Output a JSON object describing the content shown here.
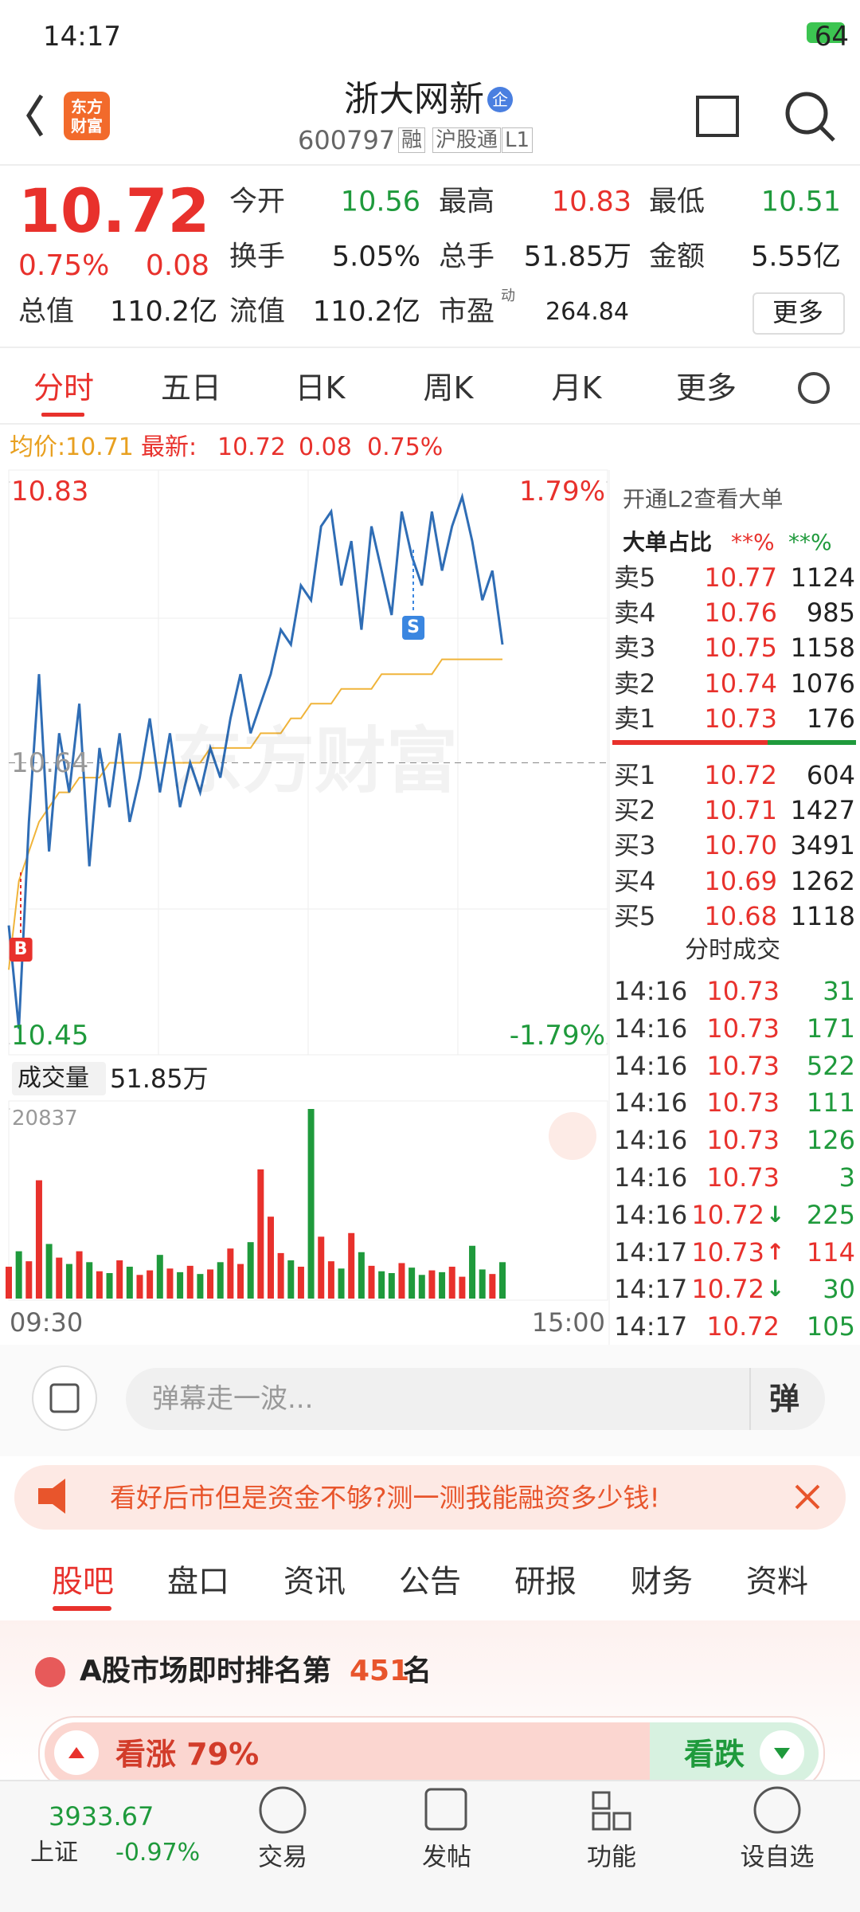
{
  "status": {
    "time": "14:17",
    "battery": "64"
  },
  "header": {
    "logo": [
      "东方",
      "财富"
    ],
    "title": "浙大网新",
    "badge": "企",
    "code": "600797",
    "tags": [
      "融",
      "沪股通",
      "L1"
    ]
  },
  "quote": {
    "price": "10.72",
    "change_pct": "0.75%",
    "change": "0.08",
    "stats": [
      [
        "今开",
        "10.56"
      ],
      [
        "最高",
        "10.83"
      ],
      [
        "最低",
        "10.51"
      ],
      [
        "换手",
        "5.05%"
      ],
      [
        "总手",
        "51.85万"
      ],
      [
        "金额",
        "5.55亿"
      ],
      [
        "总值",
        "110.2亿"
      ],
      [
        "流值",
        "110.2亿"
      ],
      [
        "市盈",
        "264.84"
      ]
    ],
    "pe_sup": "动",
    "more": "更多"
  },
  "tabs": [
    "分时",
    "五日",
    "日K",
    "周K",
    "月K",
    "更多"
  ],
  "info": {
    "avg_label": "均价:",
    "avg": "10.71",
    "last_label": "最新:",
    "last": "10.72",
    "change": "0.08",
    "pct": "0.75%"
  },
  "chart_data": [
    {
      "type": "line",
      "xticks": [
        "09:30",
        "15:00"
      ],
      "watermark": "东方财富",
      "annotations": [
        "B",
        "S"
      ],
      "ylim": [
        10.45,
        10.83
      ],
      "yticks": [
        10.83,
        10.64,
        10.45
      ],
      "y2lim": [
        -1.79,
        1.79
      ],
      "y2ticks": [
        {
          "value": 1.79,
          "label": "1.79%"
        },
        {
          "value": -1.79,
          "label": "-1.79%"
        }
      ],
      "series": [
        {
          "name": "price",
          "color": "#2f6db5",
          "values": [
            10.53,
            10.46,
            10.6,
            10.7,
            10.58,
            10.66,
            10.62,
            10.68,
            10.57,
            10.65,
            10.61,
            10.66,
            10.6,
            10.63,
            10.67,
            10.62,
            10.66,
            10.61,
            10.64,
            10.62,
            10.65,
            10.63,
            10.67,
            10.7,
            10.66,
            10.68,
            10.7,
            10.73,
            10.72,
            10.76,
            10.75,
            10.8,
            10.81,
            10.76,
            10.79,
            10.73,
            10.8,
            10.77,
            10.74,
            10.81,
            10.78,
            10.76,
            10.81,
            10.77,
            10.8,
            10.82,
            10.79,
            10.75,
            10.77,
            10.72
          ]
        },
        {
          "name": "avg",
          "color": "#f0b43a",
          "values": [
            10.5,
            10.56,
            10.58,
            10.6,
            10.61,
            10.62,
            10.62,
            10.63,
            10.63,
            10.63,
            10.64,
            10.64,
            10.64,
            10.64,
            10.64,
            10.64,
            10.64,
            10.64,
            10.64,
            10.64,
            10.65,
            10.65,
            10.65,
            10.65,
            10.65,
            10.66,
            10.66,
            10.66,
            10.67,
            10.67,
            10.68,
            10.68,
            10.68,
            10.69,
            10.69,
            10.69,
            10.69,
            10.7,
            10.7,
            10.7,
            10.7,
            10.7,
            10.7,
            10.71,
            10.71,
            10.71,
            10.71,
            10.71,
            10.71,
            10.71
          ]
        }
      ]
    },
    {
      "type": "bar",
      "title": "成交量",
      "subtitle": "51.85万",
      "up_color": "#e8312c",
      "down_color": "#1f9a3c",
      "ylim": [
        0,
        20837
      ],
      "yticks": [
        20837
      ],
      "values": [
        3500,
        5200,
        4100,
        13000,
        6000,
        4500,
        3800,
        5200,
        4000,
        3000,
        2800,
        4200,
        3500,
        2600,
        3100,
        4800,
        3300,
        2900,
        3600,
        2700,
        3200,
        4000,
        5500,
        3800,
        6200,
        14200,
        9000,
        5000,
        4200,
        3500,
        20837,
        6800,
        4100,
        3300,
        7200,
        5100,
        3600,
        3000,
        2800,
        3900,
        3400,
        2600,
        3100,
        2900,
        3500,
        2400,
        5800,
        3200,
        2700,
        4000
      ]
    }
  ],
  "order_book": {
    "promo": "开通L2查看大单",
    "ratio_label": "大单占比",
    "ratio_sell": "**%",
    "ratio_buy": "**%",
    "asks": [
      [
        "卖5",
        "10.77",
        "1124"
      ],
      [
        "卖4",
        "10.76",
        "985"
      ],
      [
        "卖3",
        "10.75",
        "1158"
      ],
      [
        "卖2",
        "10.74",
        "1076"
      ],
      [
        "卖1",
        "10.73",
        "176"
      ]
    ],
    "bids": [
      [
        "买1",
        "10.72",
        "604"
      ],
      [
        "买2",
        "10.71",
        "1427"
      ],
      [
        "买3",
        "10.70",
        "3491"
      ],
      [
        "买4",
        "10.69",
        "1262"
      ],
      [
        "买5",
        "10.68",
        "1118"
      ]
    ]
  },
  "trades": {
    "title": "分时成交",
    "rows": [
      {
        "time": "14:16",
        "price": "10.73",
        "volume": "31"
      },
      {
        "time": "14:16",
        "price": "10.73",
        "volume": "171"
      },
      {
        "time": "14:16",
        "price": "10.73",
        "volume": "522"
      },
      {
        "time": "14:16",
        "price": "10.73",
        "volume": "111"
      },
      {
        "time": "14:16",
        "price": "10.73",
        "volume": "126"
      },
      {
        "time": "14:16",
        "price": "10.73",
        "volume": "3"
      },
      {
        "time": "14:16",
        "price": "10.72",
        "volume": "225",
        "arrow": "↓"
      },
      {
        "time": "14:17",
        "price": "10.73",
        "volume": "114",
        "arrow": "↑"
      },
      {
        "time": "14:17",
        "price": "10.72",
        "volume": "30",
        "arrow": "↓"
      },
      {
        "time": "14:17",
        "price": "10.72",
        "volume": "105"
      }
    ]
  },
  "comment": {
    "placeholder": "弹幕走一波...",
    "button": "弹"
  },
  "banner": "看好后市但是资金不够?测一测我能融资多少钱!",
  "sections": [
    "股吧",
    "盘口",
    "资讯",
    "公告",
    "研报",
    "财务",
    "资料"
  ],
  "rank": {
    "text": "A股市场即时排名第",
    "rank": "451",
    "suffix": "名"
  },
  "vote": {
    "up": "看涨 79%",
    "down": "看跌"
  },
  "bottom_nav": {
    "index_value": "3933.67",
    "index_name": "上证",
    "index_change": "-0.97%",
    "items": [
      "交易",
      "发帖",
      "功能",
      "设自选"
    ]
  }
}
